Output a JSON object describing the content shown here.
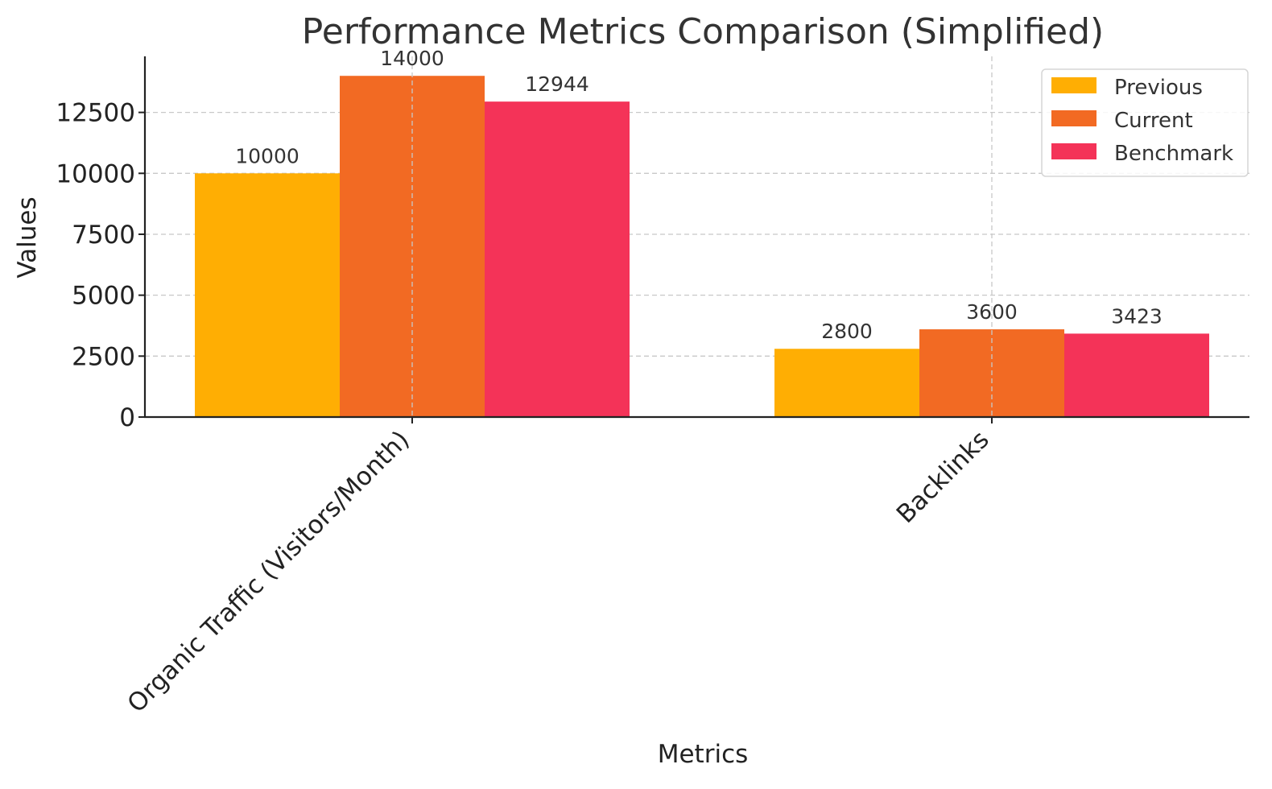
{
  "chart_data": {
    "type": "bar",
    "title": "Performance Metrics Comparison (Simplified)",
    "xlabel": "Metrics",
    "ylabel": "Values",
    "categories": [
      "Organic Traffic (Visitors/Month)",
      "Backlinks"
    ],
    "series": [
      {
        "name": "Previous",
        "values": [
          10000,
          2800
        ],
        "color": "#FFAE03"
      },
      {
        "name": "Current",
        "values": [
          14000,
          3600
        ],
        "color": "#F26A23"
      },
      {
        "name": "Benchmark",
        "values": [
          12944,
          3423
        ],
        "color": "#F43358"
      }
    ],
    "ylim": [
      0,
      14800
    ],
    "yticks": [
      0,
      2500,
      5000,
      7500,
      10000,
      12500
    ],
    "grid": true,
    "legend_position": "top-right"
  }
}
